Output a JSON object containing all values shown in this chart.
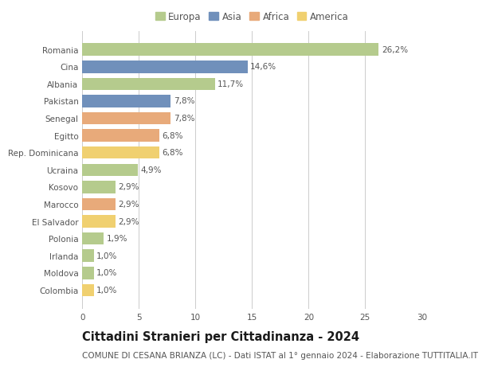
{
  "countries": [
    "Romania",
    "Cina",
    "Albania",
    "Pakistan",
    "Senegal",
    "Egitto",
    "Rep. Dominicana",
    "Ucraina",
    "Kosovo",
    "Marocco",
    "El Salvador",
    "Polonia",
    "Irlanda",
    "Moldova",
    "Colombia"
  ],
  "values": [
    26.2,
    14.6,
    11.7,
    7.8,
    7.8,
    6.8,
    6.8,
    4.9,
    2.9,
    2.9,
    2.9,
    1.9,
    1.0,
    1.0,
    1.0
  ],
  "labels": [
    "26,2%",
    "14,6%",
    "11,7%",
    "7,8%",
    "7,8%",
    "6,8%",
    "6,8%",
    "4,9%",
    "2,9%",
    "2,9%",
    "2,9%",
    "1,9%",
    "1,0%",
    "1,0%",
    "1,0%"
  ],
  "colors": [
    "#b5cb8d",
    "#7090bb",
    "#b5cb8d",
    "#7090bb",
    "#e8aa7a",
    "#e8aa7a",
    "#f0d070",
    "#b5cb8d",
    "#b5cb8d",
    "#e8aa7a",
    "#f0d070",
    "#b5cb8d",
    "#b5cb8d",
    "#b5cb8d",
    "#f0d070"
  ],
  "legend_labels": [
    "Europa",
    "Asia",
    "Africa",
    "America"
  ],
  "legend_colors": [
    "#b5cb8d",
    "#7090bb",
    "#e8aa7a",
    "#f0d070"
  ],
  "title": "Cittadini Stranieri per Cittadinanza - 2024",
  "subtitle": "COMUNE DI CESANA BRIANZA (LC) - Dati ISTAT al 1° gennaio 2024 - Elaborazione TUTTITALIA.IT",
  "xlim": [
    0,
    30
  ],
  "xticks": [
    0,
    5,
    10,
    15,
    20,
    25,
    30
  ],
  "background_color": "#ffffff",
  "grid_color": "#cccccc",
  "bar_height": 0.72,
  "title_fontsize": 10.5,
  "subtitle_fontsize": 7.5,
  "label_fontsize": 7.5,
  "tick_fontsize": 7.5,
  "legend_fontsize": 8.5
}
